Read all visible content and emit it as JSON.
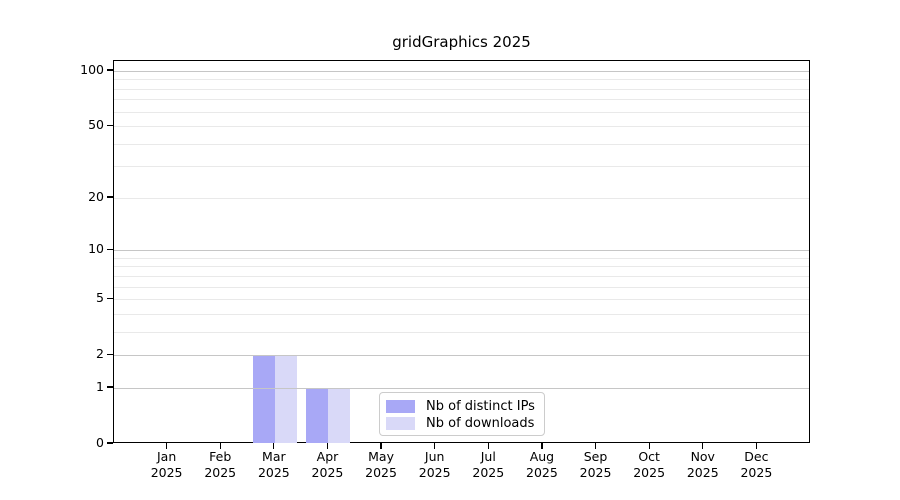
{
  "chart_data": {
    "type": "bar",
    "title": "gridGraphics 2025",
    "categories": [
      "Jan",
      "Feb",
      "Mar",
      "Apr",
      "May",
      "Jun",
      "Jul",
      "Aug",
      "Sep",
      "Oct",
      "Nov",
      "Dec"
    ],
    "category_year": "2025",
    "series": [
      {
        "name": "Nb of distinct IPs",
        "color": "#a8a8f6",
        "values": [
          0,
          0,
          2,
          1,
          0,
          0,
          0,
          0,
          0,
          0,
          0,
          0
        ]
      },
      {
        "name": "Nb of downloads",
        "color": "#d9d9f8",
        "values": [
          0,
          0,
          2,
          1,
          0,
          0,
          0,
          0,
          0,
          0,
          0,
          0
        ]
      }
    ],
    "xlabel": "",
    "ylabel": "",
    "yscale": "log1p",
    "ylim": [
      0,
      113
    ],
    "y_ticks": [
      0,
      1,
      2,
      5,
      10,
      20,
      50,
      100
    ],
    "grid_major_values": [
      1,
      2,
      10,
      100
    ],
    "grid_minor_values": [
      3,
      4,
      5,
      6,
      7,
      8,
      9,
      20,
      30,
      40,
      50,
      60,
      70,
      80,
      90
    ],
    "grid": true,
    "legend_position": "inside-bottom-center"
  },
  "colors": {
    "grid_major": "#c6c6c6",
    "grid_minor": "#e9e9e9",
    "axis": "#000000",
    "legend_border": "#cccccc",
    "background": "#ffffff",
    "text": "#000000"
  }
}
